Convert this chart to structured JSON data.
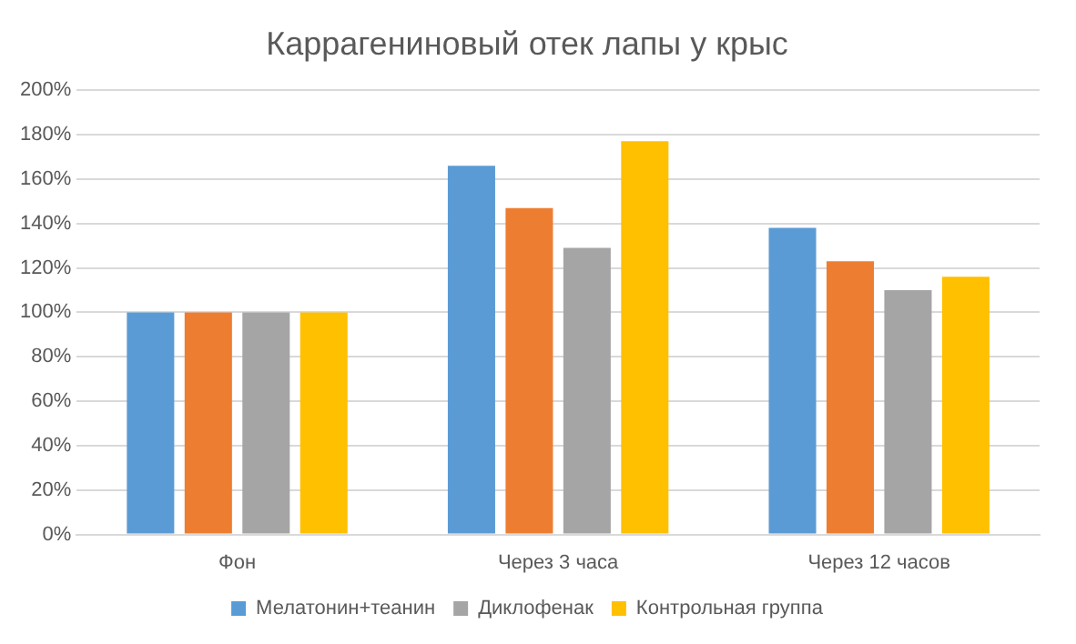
{
  "chart_data": {
    "type": "bar",
    "title": "Каррагениновый отек лапы у крыс",
    "categories": [
      "Фон",
      "Через 3 часа",
      "Через 12 часов"
    ],
    "series": [
      {
        "name": "Мелатонин+теанин",
        "color": "#5b9bd5",
        "values": [
          100,
          166,
          138
        ]
      },
      {
        "color": "#ed7d31",
        "values": [
          100,
          147,
          123
        ]
      },
      {
        "name": "Диклофенак",
        "color": "#a5a5a5",
        "values": [
          100,
          129,
          110
        ]
      },
      {
        "name": "Контрольная группа",
        "color": "#ffc000",
        "values": [
          100,
          177,
          116
        ]
      }
    ],
    "ylim": [
      0,
      200
    ],
    "yticks": [
      {
        "value": 0,
        "label": "0%"
      },
      {
        "value": 20,
        "label": "20%"
      },
      {
        "value": 40,
        "label": "40%"
      },
      {
        "value": 60,
        "label": "60%"
      },
      {
        "value": 80,
        "label": "80%"
      },
      {
        "value": 100,
        "label": "100%"
      },
      {
        "value": 120,
        "label": "120%"
      },
      {
        "value": 140,
        "label": "140%"
      },
      {
        "value": 160,
        "label": "160%"
      },
      {
        "value": 180,
        "label": "180%"
      },
      {
        "value": 200,
        "label": "200%"
      }
    ],
    "grid": "y",
    "legend": "bottom"
  }
}
